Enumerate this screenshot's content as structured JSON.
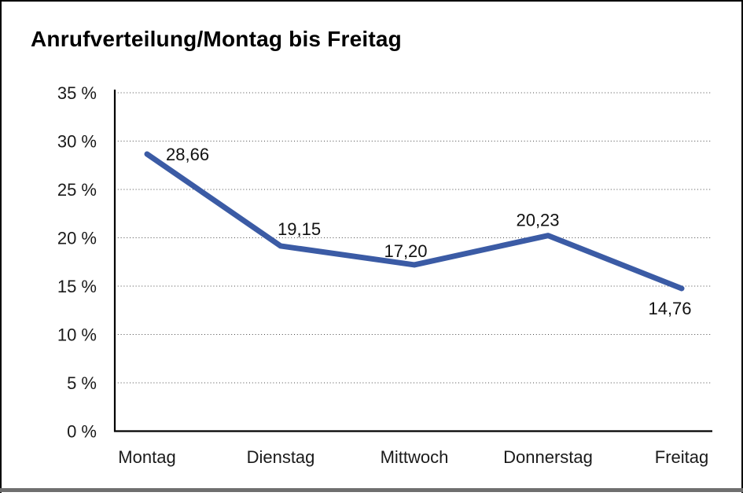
{
  "title": "Anrufverteilung/Montag bis Freitag",
  "window": {
    "background": "#ffffff",
    "frame_border_color": "#000000",
    "bottom_bar_color": "#6f6f6f"
  },
  "chart_data": {
    "type": "line",
    "title": "Anrufverteilung/Montag bis Freitag",
    "categories": [
      "Montag",
      "Dienstag",
      "Mittwoch",
      "Donnerstag",
      "Freitag"
    ],
    "series": [
      {
        "values": [
          28.66,
          19.15,
          17.2,
          20.23,
          14.76
        ],
        "point_labels": [
          "28,66",
          "19,15",
          "17,20",
          "20,23",
          "14,76"
        ],
        "color": "#3b5ba5",
        "line_width": 7
      }
    ],
    "xlabel": "",
    "ylabel": "",
    "ylim": [
      0,
      35
    ],
    "y_tick_step": 5,
    "y_tick_labels": [
      "35 %",
      "30 %",
      "25 %",
      "20 %",
      "15 %",
      "10 %",
      "5 %",
      "0 %"
    ],
    "grid": "horizontal-dotted",
    "legend": "none"
  }
}
